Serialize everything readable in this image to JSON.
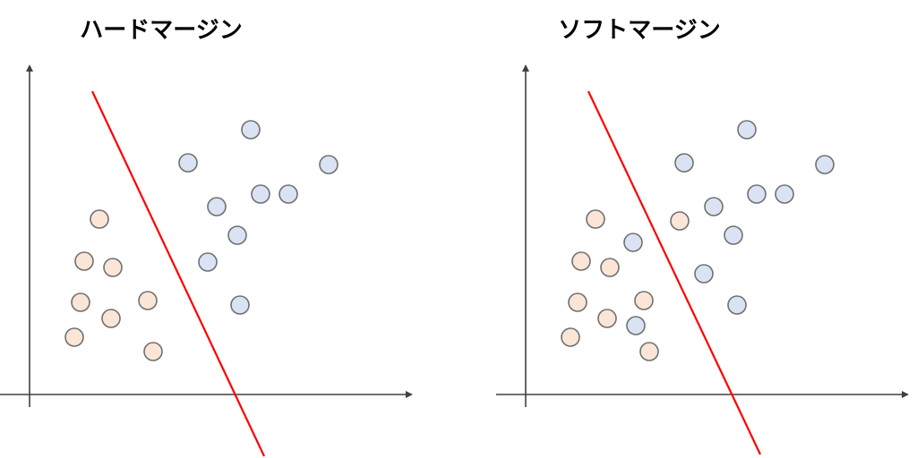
{
  "panels": [
    {
      "title": "ハードマージン"
    },
    {
      "title": "ソフトマージン"
    }
  ]
}
